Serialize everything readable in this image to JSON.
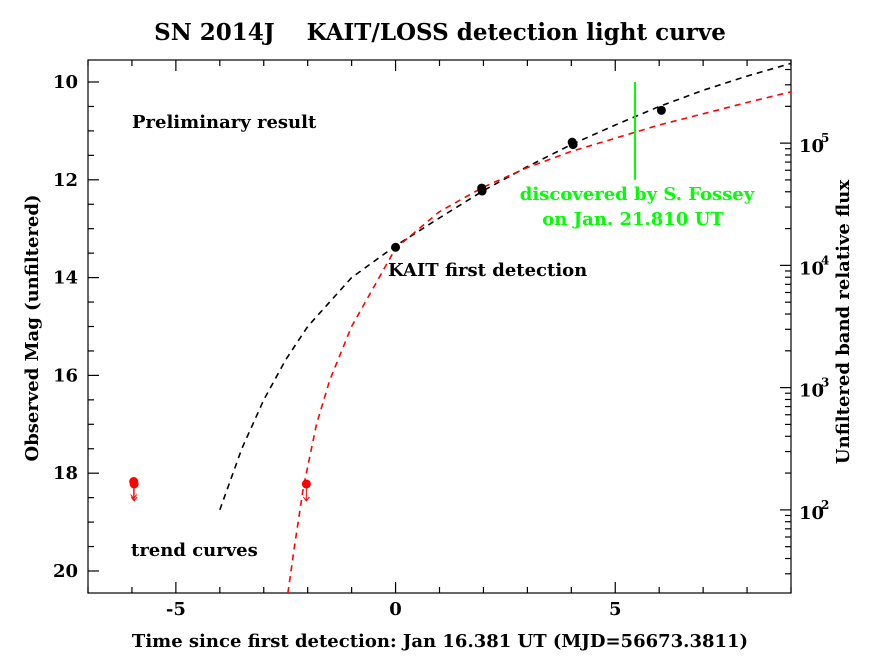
{
  "chart_data": {
    "type": "scatter",
    "title": "SN 2014J    KAIT/LOSS detection light curve",
    "xlabel": "Time since first detection: Jan 16.381 UT (MJD=56673.3811)",
    "ylabel": "Observed Mag (unfiltered)",
    "y2label": "Unfiltered band relative flux",
    "xlim": [
      -7.0,
      9.0
    ],
    "ylim": [
      20.45,
      9.55
    ],
    "y_inverted": true,
    "x_ticks": [
      {
        "v": -5,
        "label": "-5"
      },
      {
        "v": 0,
        "label": "0"
      },
      {
        "v": 5,
        "label": "5"
      }
    ],
    "y_ticks": [
      {
        "v": 10,
        "label": "10"
      },
      {
        "v": 12,
        "label": "12"
      },
      {
        "v": 14,
        "label": "14"
      },
      {
        "v": 16,
        "label": "16"
      },
      {
        "v": 18,
        "label": "18"
      },
      {
        "v": 20,
        "label": "20"
      }
    ],
    "y2_ticks": [
      {
        "mag": 11.25,
        "base": "10",
        "exp": "5"
      },
      {
        "mag": 13.75,
        "base": "10",
        "exp": "4"
      },
      {
        "mag": 16.25,
        "base": "10",
        "exp": "3"
      },
      {
        "mag": 18.75,
        "base": "10",
        "exp": "2"
      }
    ],
    "grid": false,
    "detections": [
      {
        "x": 0.0,
        "y": 13.38
      },
      {
        "x": 1.96,
        "y": 12.17
      },
      {
        "x": 1.97,
        "y": 12.23
      },
      {
        "x": 4.02,
        "y": 11.23
      },
      {
        "x": 4.04,
        "y": 11.28
      },
      {
        "x": 6.05,
        "y": 10.58
      }
    ],
    "upper_limits": [
      {
        "x": -5.96,
        "y": 18.17
      },
      {
        "x": -5.95,
        "y": 18.22
      },
      {
        "x": -2.03,
        "y": 18.22
      }
    ],
    "trend_curves": [
      {
        "color": "#000000",
        "points": [
          [
            -4.0,
            18.75
          ],
          [
            -3.5,
            17.5
          ],
          [
            -3.0,
            16.5
          ],
          [
            -2.5,
            15.68
          ],
          [
            -2.0,
            15.0
          ],
          [
            -1.0,
            14.0
          ],
          [
            0.0,
            13.35
          ],
          [
            1.0,
            12.78
          ],
          [
            2.0,
            12.22
          ],
          [
            3.0,
            11.73
          ],
          [
            4.0,
            11.28
          ],
          [
            5.0,
            10.88
          ],
          [
            6.0,
            10.5
          ],
          [
            7.0,
            10.17
          ],
          [
            8.0,
            9.88
          ],
          [
            9.0,
            9.62
          ]
        ]
      },
      {
        "color": "#ff0000",
        "points": [
          [
            -2.45,
            20.45
          ],
          [
            -2.3,
            19.5
          ],
          [
            -2.1,
            18.3
          ],
          [
            -1.8,
            17.0
          ],
          [
            -1.5,
            16.1
          ],
          [
            -1.0,
            15.0
          ],
          [
            -0.5,
            14.2
          ],
          [
            0.0,
            13.4
          ],
          [
            1.0,
            12.65
          ],
          [
            2.0,
            12.15
          ],
          [
            3.0,
            11.75
          ],
          [
            4.0,
            11.42
          ],
          [
            5.0,
            11.15
          ],
          [
            6.0,
            10.88
          ],
          [
            7.0,
            10.65
          ],
          [
            8.0,
            10.42
          ],
          [
            9.0,
            10.2
          ]
        ]
      }
    ],
    "discovery_marker": {
      "x": 5.45,
      "y_top": 10.0,
      "y_bottom": 12.0,
      "color": "#00ff00"
    },
    "detection_color": "#000000",
    "limit_color": "#ff0000",
    "annotations": {
      "preliminary": "Preliminary result",
      "first_detection": "KAIT first detection",
      "discovery_line1": "discovered by S. Fossey",
      "discovery_line2": "on Jan. 21.810 UT",
      "trend": "trend curves"
    }
  }
}
